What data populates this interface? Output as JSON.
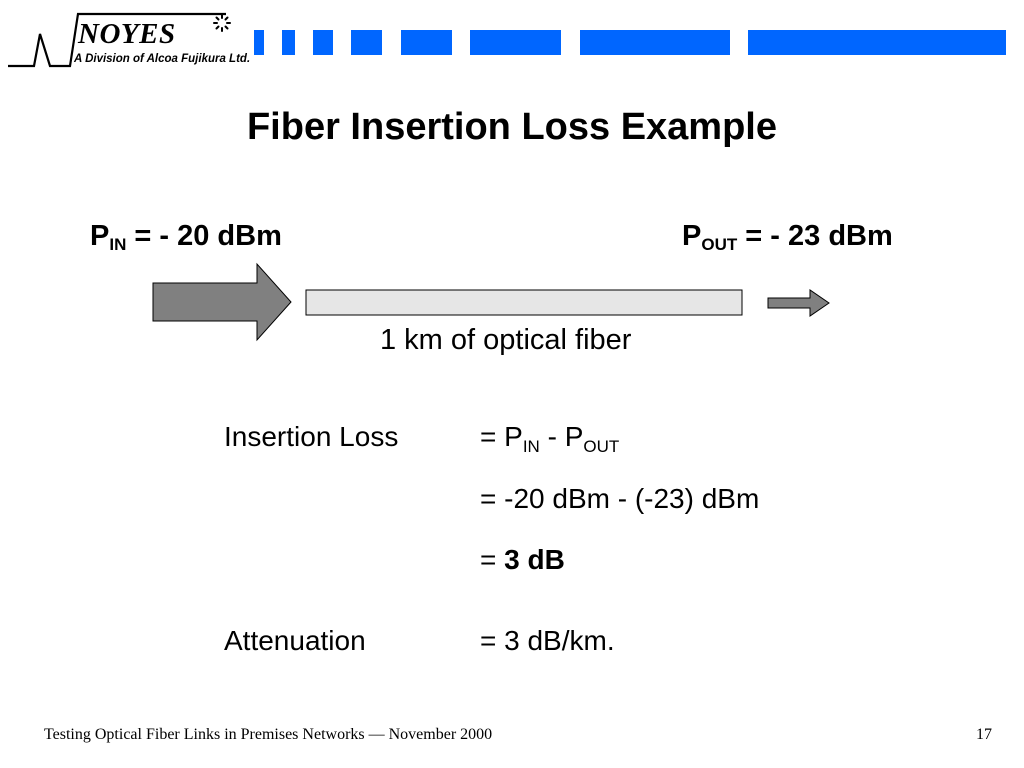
{
  "logo": {
    "name": "NOYES",
    "subtitle": "A Division of Alcoa Fujikura Ltd."
  },
  "title": "Fiber Insertion Loss Example",
  "diagram": {
    "p_in": {
      "symbol": "P",
      "subscript": "IN",
      "value": "= - 20 dBm"
    },
    "p_out": {
      "symbol": "P",
      "subscript": "OUT",
      "value": "= - 23 dBm"
    },
    "fiber_label": "1 km of optical fiber"
  },
  "equations": {
    "insertion_loss_label": "Insertion Loss",
    "il_line1": {
      "prefix": "= P",
      "sub1": "IN",
      "mid": " - P",
      "sub2": "OUT"
    },
    "il_line2": "= -20 dBm - (-23) dBm",
    "il_line3": {
      "prefix": "= ",
      "result": "3 dB"
    },
    "attenuation_label": "Attenuation",
    "attenuation_value": "= 3 dB/km."
  },
  "footer": {
    "text": "Testing Optical Fiber Links in Premises Networks — November 2000",
    "page": "17"
  },
  "colors": {
    "accent_blue": "#0066ff",
    "arrow_gray": "#808080",
    "fiber_fill": "#e6e6e6"
  }
}
